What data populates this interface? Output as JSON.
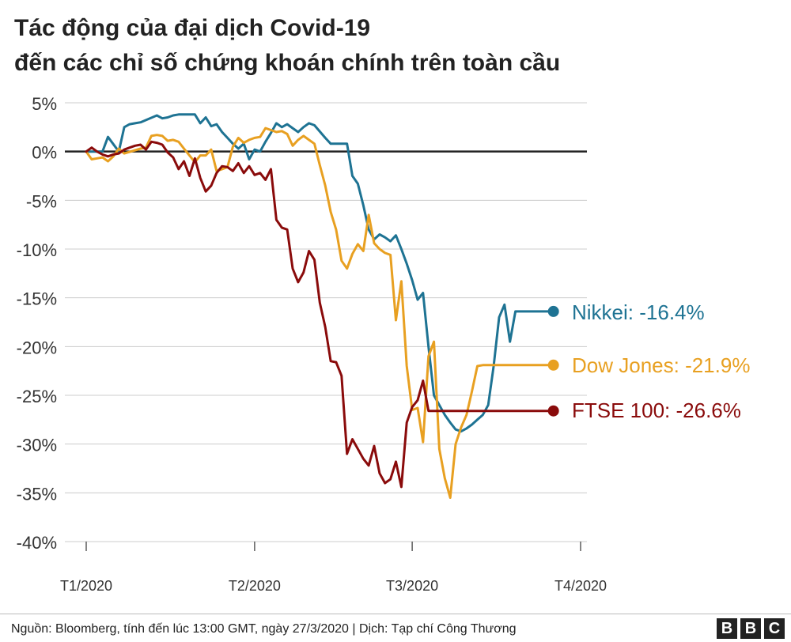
{
  "title": {
    "line1": "Tác động của đại dịch Covid-19",
    "line2": "đến các chỉ số chứng khoán chính trên toàn cầu"
  },
  "source": "Nguồn: Bloomberg, tính đến lúc 13:00 GMT, ngày 27/3/2020 | Dịch: Tạp chí Công Thương",
  "logo": [
    "B",
    "B",
    "C"
  ],
  "chart_data": {
    "type": "line",
    "ylim": [
      -40,
      5
    ],
    "yticks": [
      5,
      0,
      -5,
      -10,
      -15,
      -20,
      -25,
      -30,
      -35,
      -40
    ],
    "ytick_labels": [
      "5%",
      "0%",
      "-5%",
      "-10%",
      "-15%",
      "-20%",
      "-25%",
      "-30%",
      "-35%",
      "-40%"
    ],
    "xlim": [
      1,
      87
    ],
    "xticks": [
      1,
      32,
      61,
      92
    ],
    "xtick_labels": [
      "T1/2020",
      "T2/2020",
      "T3/2020",
      "T4/2020"
    ],
    "grid": true,
    "legend": "end-of-line labels",
    "series": [
      {
        "name": "Nikkei",
        "end_label": "Nikkei: -16.4%",
        "color": "#1e7393",
        "x": [
          1,
          2,
          4,
          5,
          7,
          8,
          9,
          10,
          11,
          14,
          15,
          16,
          17,
          18,
          21,
          22,
          23,
          24,
          25,
          26,
          27,
          28,
          29,
          30,
          31,
          32,
          33,
          34,
          35,
          36,
          37,
          38,
          39,
          40,
          41,
          42,
          43,
          45,
          46,
          47,
          48,
          49,
          50,
          51,
          52,
          53,
          54,
          55,
          56,
          57,
          58,
          59,
          60,
          61,
          62,
          63,
          64,
          65,
          66,
          67,
          68,
          69,
          70,
          71,
          72,
          73,
          74,
          75,
          76,
          77,
          78,
          79,
          80,
          81,
          82,
          83,
          84,
          85,
          86,
          87
        ],
        "y": [
          0,
          0,
          0,
          1.5,
          0,
          2.5,
          2.8,
          2.9,
          3,
          3.7,
          3.4,
          3.5,
          3.7,
          3.8,
          3.8,
          2.9,
          3.5,
          2.6,
          2.8,
          2,
          1.4,
          0.8,
          0.3,
          0.8,
          -0.8,
          0.2,
          0,
          1,
          1.9,
          2.9,
          2.5,
          2.8,
          2.4,
          2,
          2.5,
          2.9,
          2.7,
          1.4,
          0.8,
          0.8,
          0.8,
          0.8,
          -2.5,
          -3.3,
          -5.5,
          -8,
          -9,
          -8.5,
          -8.8,
          -9.2,
          -8.6,
          -10,
          -11.5,
          -13.2,
          -15.2,
          -14.5,
          -20,
          -25,
          -26,
          -27,
          -27.8,
          -28.5,
          -28.7,
          -28.4,
          -28,
          -27.5,
          -27,
          -26,
          -22,
          -17,
          -15.7,
          -19.5,
          -16.4,
          -16.4,
          -16.4,
          -16.4,
          -16.4,
          -16.4,
          -16.4,
          -16.4
        ]
      },
      {
        "name": "Dow Jones",
        "end_label": "Dow Jones: -21.9%",
        "color": "#e8a021",
        "x": [
          1,
          2,
          3,
          4,
          5,
          6,
          7,
          8,
          11,
          12,
          13,
          14,
          15,
          16,
          17,
          18,
          19,
          20,
          21,
          22,
          23,
          24,
          25,
          26,
          27,
          28,
          29,
          30,
          31,
          32,
          33,
          34,
          35,
          36,
          37,
          38,
          39,
          40,
          41,
          42,
          43,
          44,
          45,
          46,
          47,
          48,
          49,
          50,
          51,
          52,
          53,
          54,
          55,
          56,
          57,
          58,
          59,
          60,
          61,
          62,
          63,
          64,
          65,
          66,
          67,
          68,
          69,
          70,
          71,
          72,
          73,
          74,
          75,
          76,
          77,
          78,
          79,
          80,
          81,
          82,
          83,
          84,
          85,
          86,
          87
        ],
        "y": [
          0,
          -0.8,
          -0.7,
          -0.6,
          -1,
          -0.5,
          0.3,
          -0.2,
          0.3,
          0.4,
          1.6,
          1.7,
          1.6,
          1.1,
          1.2,
          1,
          0.3,
          -0.4,
          -1.1,
          -0.4,
          -0.4,
          0.2,
          -2,
          -1.8,
          -1.6,
          0.5,
          1.4,
          0.9,
          1.2,
          1.4,
          1.5,
          2.4,
          2.2,
          2,
          2.1,
          1.8,
          0.6,
          1.2,
          1.6,
          1.2,
          0.8,
          -1.4,
          -3.5,
          -6.2,
          -8,
          -11.2,
          -12,
          -10.5,
          -9.5,
          -10.2,
          -6.5,
          -9.4,
          -10,
          -10.4,
          -10.6,
          -17.3,
          -13.3,
          -22,
          -26.5,
          -26.3,
          -29.8,
          -21,
          -19.5,
          -30.5,
          -33.5,
          -35.5,
          -30,
          -28.3,
          -27,
          -24.6,
          -22,
          -21.9,
          -21.9,
          -21.9,
          -21.9,
          -21.9,
          -21.9,
          -21.9,
          -21.9,
          -21.9,
          -21.9,
          -21.9,
          -21.9,
          -21.9,
          -21.9
        ]
      },
      {
        "name": "FTSE 100",
        "end_label": "FTSE 100: -26.6%",
        "color": "#8a0b0b",
        "x": [
          1,
          2,
          3,
          4,
          5,
          6,
          7,
          8,
          9,
          10,
          11,
          12,
          13,
          14,
          15,
          16,
          17,
          18,
          19,
          20,
          21,
          22,
          23,
          24,
          25,
          26,
          27,
          28,
          29,
          30,
          31,
          32,
          33,
          34,
          35,
          36,
          37,
          38,
          39,
          40,
          41,
          42,
          43,
          44,
          45,
          46,
          47,
          48,
          49,
          50,
          51,
          52,
          53,
          54,
          55,
          56,
          57,
          58,
          59,
          60,
          61,
          62,
          63,
          64,
          65,
          66,
          67,
          68,
          69,
          70,
          71,
          72,
          73,
          74,
          75,
          76,
          77,
          78,
          79,
          80,
          81,
          82,
          83,
          84,
          85,
          86,
          87
        ],
        "y": [
          0,
          0.4,
          0,
          -0.3,
          -0.5,
          -0.3,
          -0.2,
          0.2,
          0.4,
          0.6,
          0.7,
          0.2,
          1,
          0.9,
          0.7,
          -0.1,
          -0.6,
          -1.8,
          -1,
          -2.5,
          -0.7,
          -2.7,
          -4.1,
          -3.5,
          -2.2,
          -1.5,
          -1.6,
          -2,
          -1.2,
          -2.2,
          -1.5,
          -2.4,
          -2.2,
          -2.9,
          -1.8,
          -7,
          -7.8,
          -8,
          -12,
          -13.4,
          -12.4,
          -10.2,
          -11.1,
          -15.5,
          -18,
          -21.5,
          -21.6,
          -23,
          -31,
          -29.5,
          -30.5,
          -31.5,
          -32.2,
          -30.2,
          -33,
          -34,
          -33.6,
          -31.8,
          -34.4,
          -27.8,
          -26.2,
          -25.5,
          -23.5,
          -26.6,
          -26.6,
          -26.6,
          -26.6,
          -26.6,
          -26.6,
          -26.6,
          -26.6,
          -26.6,
          -26.6,
          -26.6,
          -26.6,
          -26.6,
          -26.6,
          -26.6,
          -26.6,
          -26.6,
          -26.6,
          -26.6,
          -26.6,
          -26.6,
          -26.6,
          -26.6,
          -26.6
        ]
      }
    ]
  }
}
